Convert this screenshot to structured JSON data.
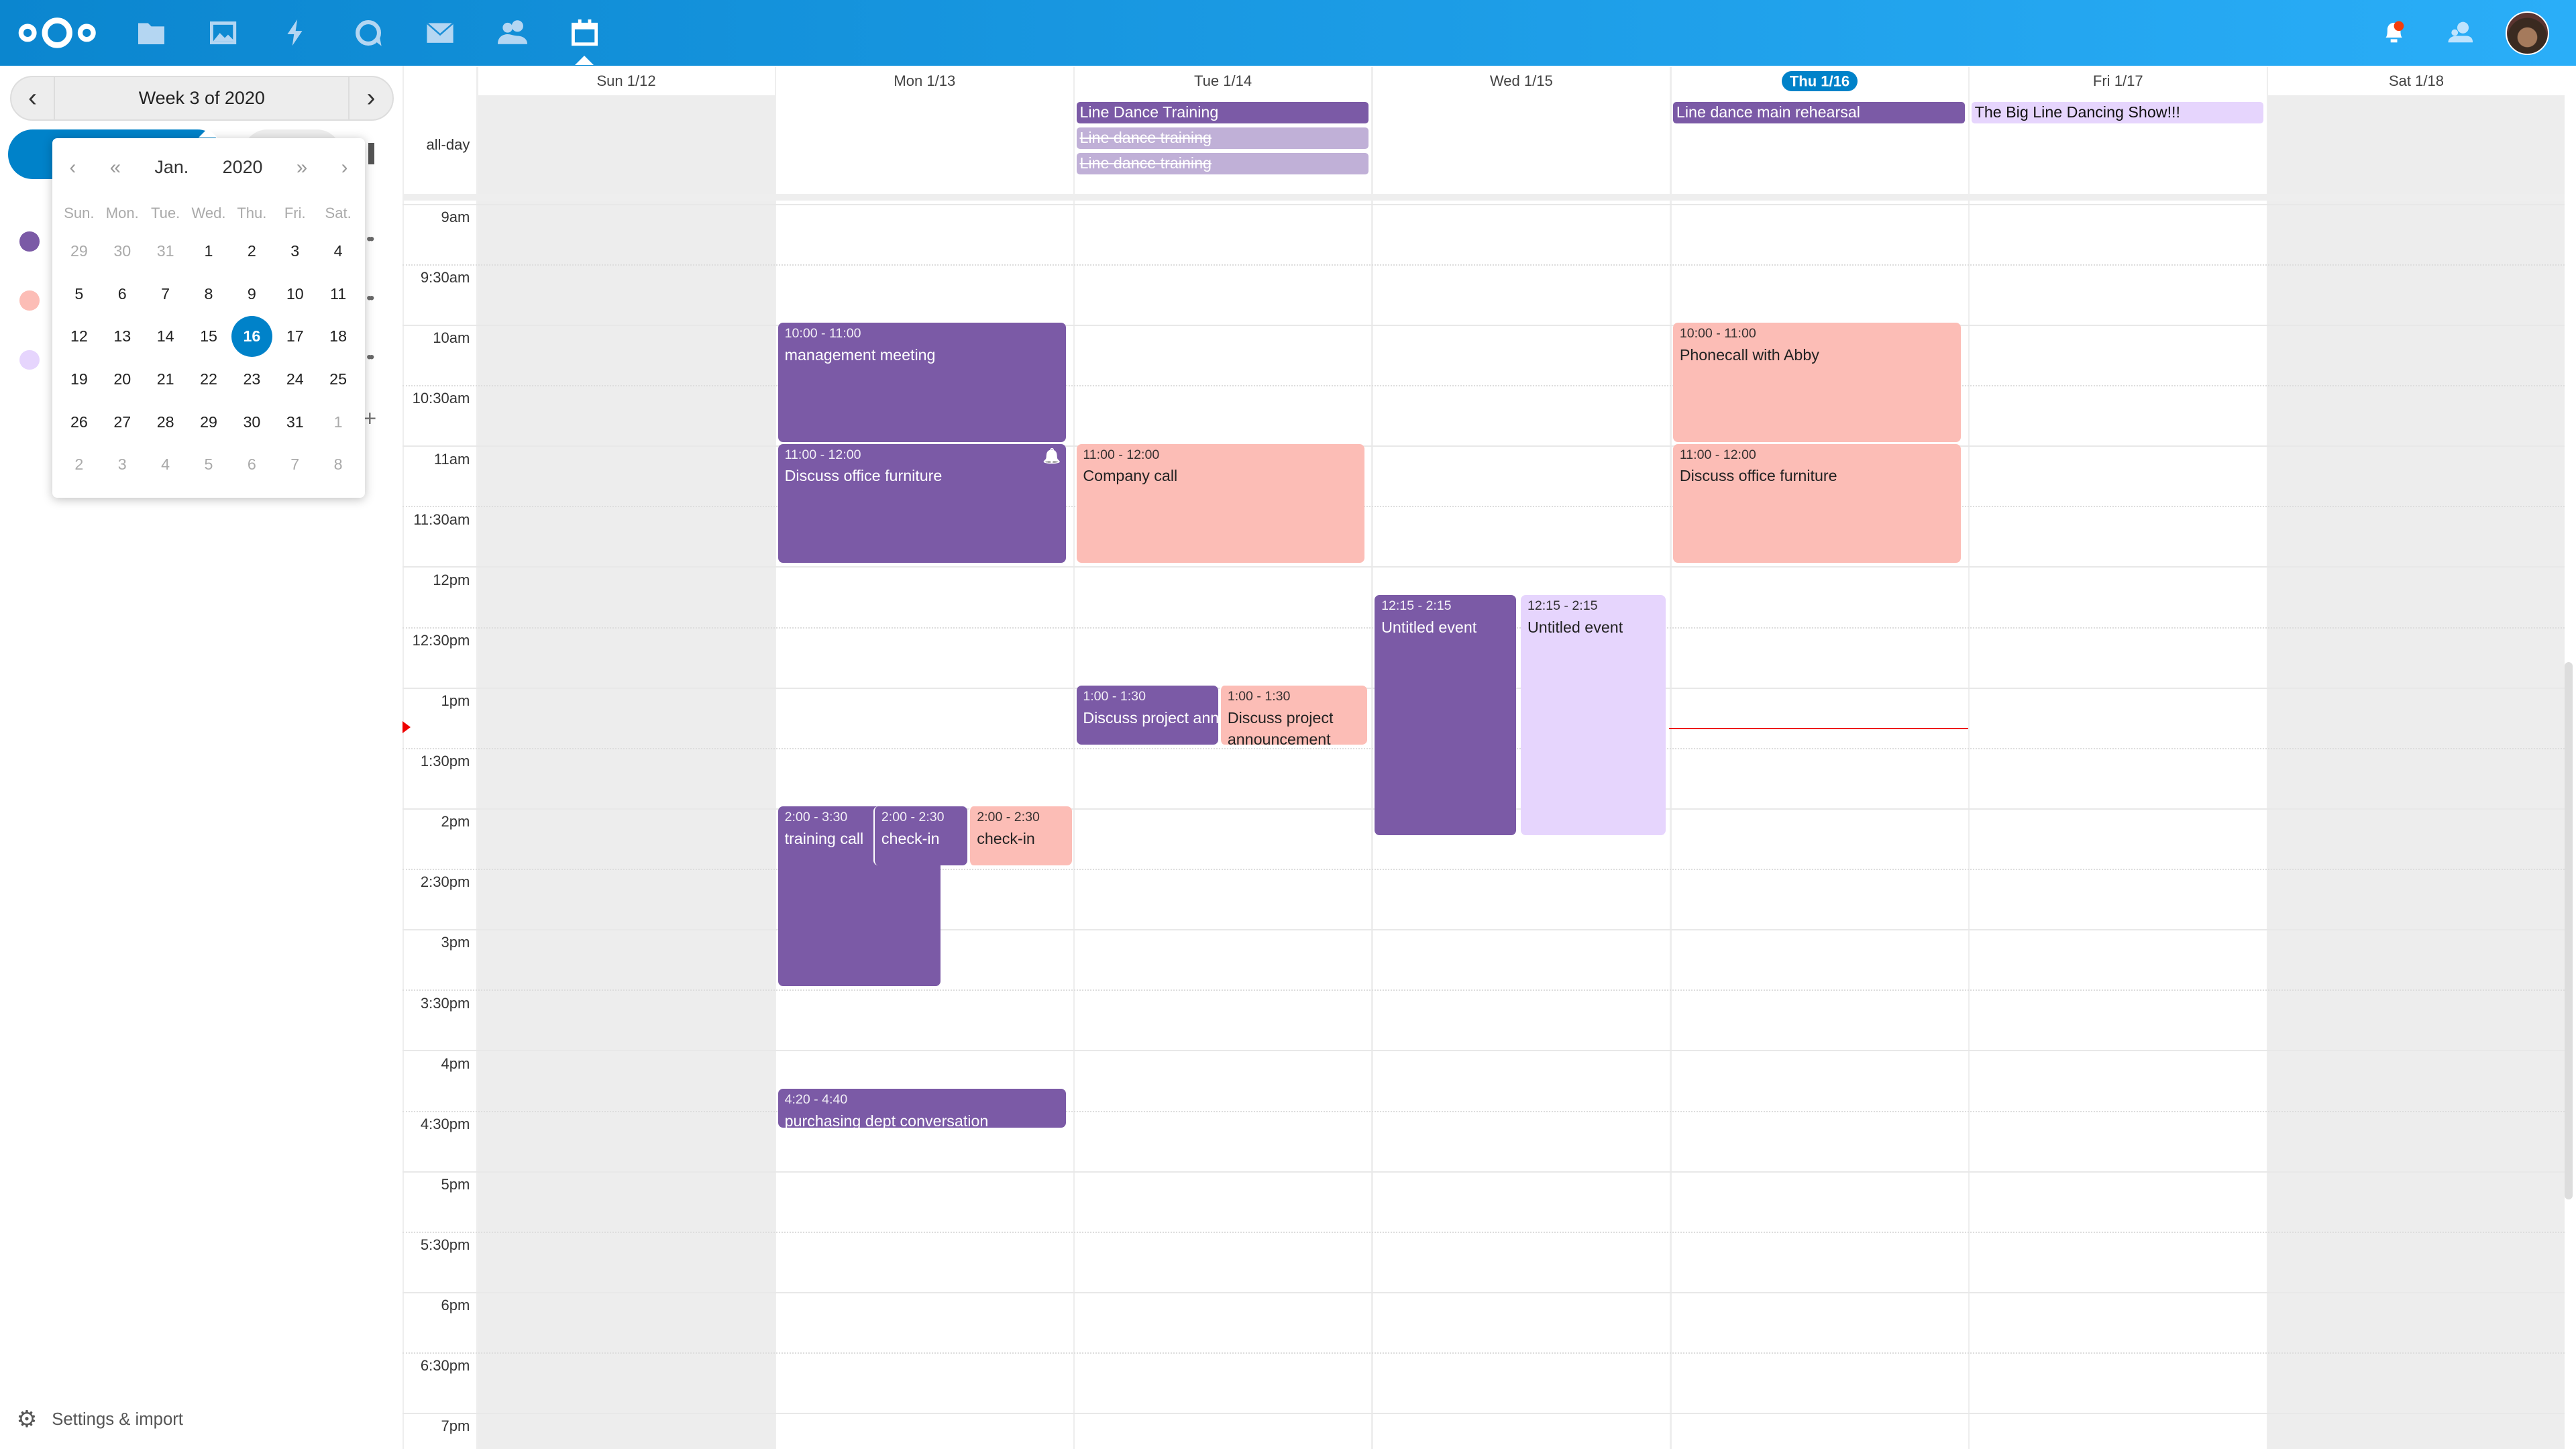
{
  "colors": {
    "accent": "#0082c9",
    "purple": "#7b5aa6",
    "salmon": "#fcbdb6",
    "lavender": "#e6d5fd",
    "cancelled": "#c0b0d7",
    "now": "#e00000"
  },
  "topbar": {
    "apps": [
      "nextcloud-logo",
      "files-icon",
      "photos-icon",
      "activity-icon",
      "talk-icon",
      "mail-icon",
      "contacts-icon",
      "calendar-icon"
    ],
    "right": [
      "notifications-icon",
      "contacts-menu-icon",
      "user-avatar"
    ]
  },
  "sidebar": {
    "week_label": "Week 3 of 2020",
    "datepicker": {
      "month": "Jan.",
      "year": "2020",
      "weekdays": [
        "Sun.",
        "Mon.",
        "Tue.",
        "Wed.",
        "Thu.",
        "Fri.",
        "Sat."
      ],
      "weeks": [
        [
          "29",
          "30",
          "31",
          "1",
          "2",
          "3",
          "4"
        ],
        [
          "5",
          "6",
          "7",
          "8",
          "9",
          "10",
          "11"
        ],
        [
          "12",
          "13",
          "14",
          "15",
          "16",
          "17",
          "18"
        ],
        [
          "19",
          "20",
          "21",
          "22",
          "23",
          "24",
          "25"
        ],
        [
          "26",
          "27",
          "28",
          "29",
          "30",
          "31",
          "1"
        ],
        [
          "2",
          "3",
          "4",
          "5",
          "6",
          "7",
          "8"
        ]
      ],
      "selected": "16"
    },
    "calendars": [
      "purple",
      "salmon",
      "lavender"
    ],
    "settings_label": "Settings & import"
  },
  "grid": {
    "days": [
      "Sun 1/12",
      "Mon 1/13",
      "Tue 1/14",
      "Wed 1/15",
      "Thu 1/16",
      "Fri 1/17",
      "Sat 1/18"
    ],
    "today_index": 4,
    "allday_label": "all-day",
    "times": [
      "9am",
      "9:30am",
      "10am",
      "10:30am",
      "11am",
      "11:30am",
      "12pm",
      "12:30pm",
      "1pm",
      "1:30pm",
      "2pm",
      "2:30pm",
      "3pm",
      "3:30pm",
      "4pm",
      "4:30pm",
      "5pm",
      "5:30pm",
      "6pm",
      "6:30pm",
      "7pm"
    ],
    "now": "13:19",
    "allday_events": [
      {
        "day": 2,
        "title": "Line Dance Training",
        "calendar": "purple"
      },
      {
        "day": 2,
        "title": "Line dance training",
        "calendar": "cancelled",
        "strike": true
      },
      {
        "day": 2,
        "title": "Line dance training",
        "calendar": "cancelled",
        "strike": true
      },
      {
        "day": 4,
        "title": "Line dance main rehearsal",
        "calendar": "purple"
      },
      {
        "day": 5,
        "title": "The Big Line Dancing Show!!!",
        "calendar": "lavender"
      }
    ],
    "events": [
      {
        "day": 1,
        "start": 10,
        "end": 11,
        "time": "10:00 - 11:00",
        "title": "management meeting",
        "calendar": "purple"
      },
      {
        "day": 1,
        "start": 11,
        "end": 12,
        "time": "11:00 - 12:00",
        "title": "Discuss office furniture",
        "calendar": "purple",
        "alarm": true
      },
      {
        "day": 1,
        "start": 14,
        "end": 15.5,
        "time": "2:00 - 3:30",
        "title": "training call",
        "calendar": "purple"
      },
      {
        "day": 1,
        "start": 14,
        "end": 14.5,
        "time": "2:00 - 2:30",
        "title": "check-in",
        "calendar": "purple"
      },
      {
        "day": 1,
        "start": 14,
        "end": 14.5,
        "time": "2:00 - 2:30",
        "title": "check-in",
        "calendar": "salmon"
      },
      {
        "day": 1,
        "start": 16.333,
        "end": 16.667,
        "time": "4:20 - 4:40",
        "title": "purchasing dept conversation",
        "calendar": "purple"
      },
      {
        "day": 2,
        "start": 11,
        "end": 12,
        "time": "11:00 - 12:00",
        "title": "Company call",
        "calendar": "salmon"
      },
      {
        "day": 2,
        "start": 13,
        "end": 13.5,
        "time": "1:00 - 1:30",
        "title": "Discuss project announcement",
        "calendar": "purple"
      },
      {
        "day": 2,
        "start": 13,
        "end": 13.5,
        "time": "1:00 - 1:30",
        "title": "Discuss project announcement",
        "calendar": "salmon"
      },
      {
        "day": 3,
        "start": 12.25,
        "end": 14.25,
        "time": "12:15 - 2:15",
        "title": "Untitled event",
        "calendar": "purple"
      },
      {
        "day": 3,
        "start": 12.25,
        "end": 14.25,
        "time": "12:15 - 2:15",
        "title": "Untitled event",
        "calendar": "lavender"
      },
      {
        "day": 4,
        "start": 10,
        "end": 11,
        "time": "10:00 - 11:00",
        "title": "Phonecall with Abby",
        "calendar": "salmon"
      },
      {
        "day": 4,
        "start": 11,
        "end": 12,
        "time": "11:00 - 12:00",
        "title": "Discuss office furniture",
        "calendar": "salmon"
      }
    ]
  }
}
